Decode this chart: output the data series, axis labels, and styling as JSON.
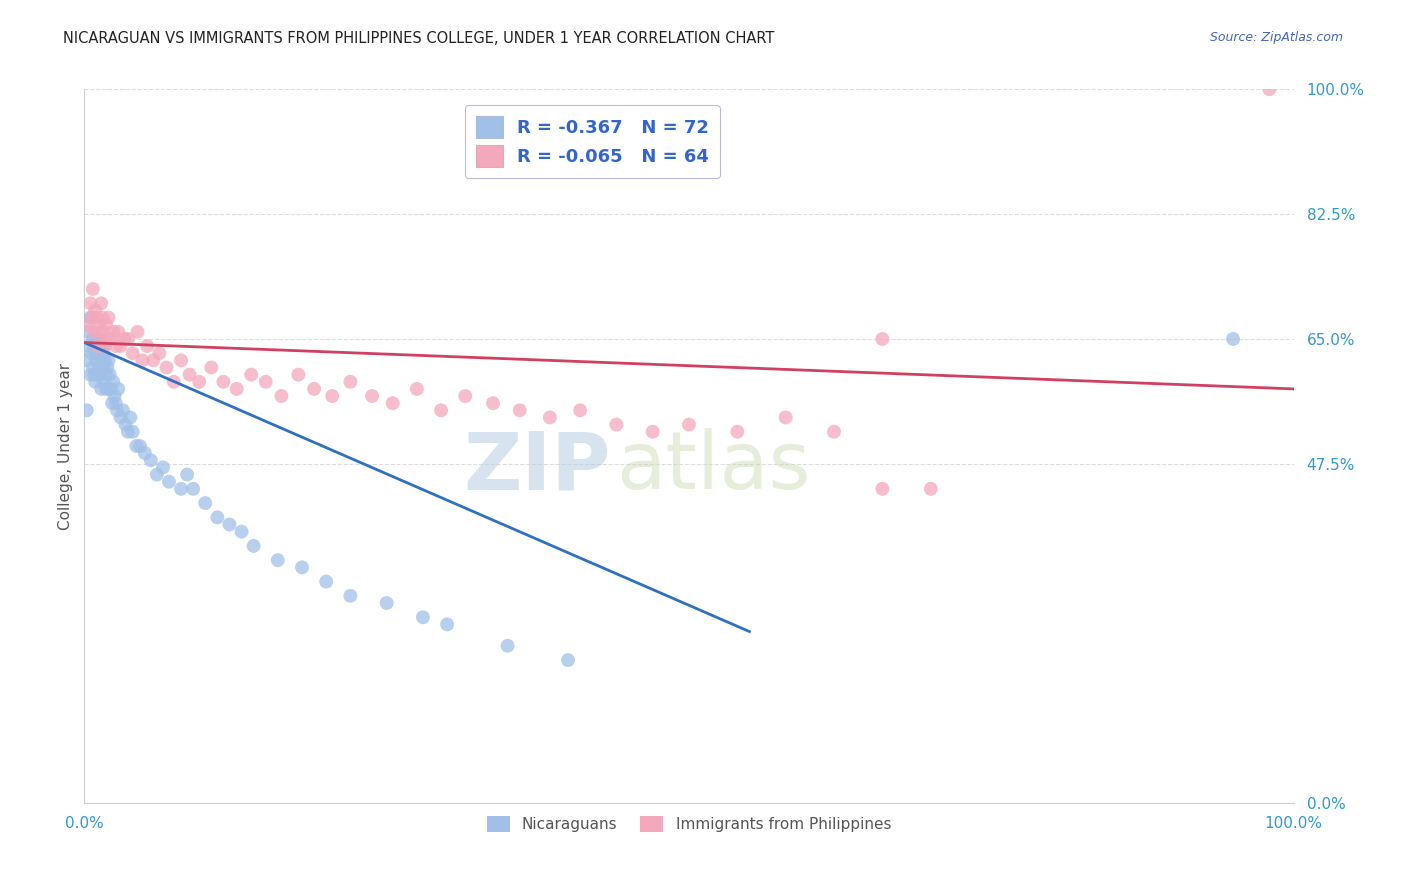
{
  "title": "NICARAGUAN VS IMMIGRANTS FROM PHILIPPINES COLLEGE, UNDER 1 YEAR CORRELATION CHART",
  "source": "Source: ZipAtlas.com",
  "ylabel": "College, Under 1 year",
  "xlim": [
    0.0,
    1.0
  ],
  "ylim": [
    0.0,
    1.0
  ],
  "xtick_positions": [
    0.0,
    1.0
  ],
  "xtick_labels": [
    "0.0%",
    "100.0%"
  ],
  "ytick_positions": [
    0.0,
    0.475,
    0.65,
    0.825,
    1.0
  ],
  "ytick_labels": [
    "0.0%",
    "47.5%",
    "65.0%",
    "82.5%",
    "100.0%"
  ],
  "legend_label_nicaraguans": "Nicaraguans",
  "legend_label_philippines": "Immigrants from Philippines",
  "watermark_zip": "ZIP",
  "watermark_atlas": "atlas",
  "blue_R": -0.367,
  "blue_N": 72,
  "pink_R": -0.065,
  "pink_N": 64,
  "blue_scatter_color": "#a0c0e8",
  "pink_scatter_color": "#f4a8bc",
  "blue_line_color": "#3070c0",
  "pink_line_color": "#d04060",
  "title_color": "#222222",
  "source_color": "#4466bb",
  "ylabel_color": "#555555",
  "tick_color": "#3399cc",
  "grid_color": "#dddddd",
  "legend_text_color": "#3366cc",
  "legend_border_color": "#bbbbdd",
  "background_color": "#ffffff",
  "blue_line_x0": 0.0,
  "blue_line_x1": 0.55,
  "blue_line_y0": 0.645,
  "blue_line_y1": 0.24,
  "pink_line_x0": 0.0,
  "pink_line_x1": 1.0,
  "pink_line_y0": 0.645,
  "pink_line_y1": 0.58,
  "blue_x": [
    0.002,
    0.003,
    0.004,
    0.005,
    0.005,
    0.006,
    0.007,
    0.007,
    0.008,
    0.008,
    0.009,
    0.009,
    0.01,
    0.01,
    0.011,
    0.011,
    0.012,
    0.012,
    0.013,
    0.013,
    0.014,
    0.014,
    0.015,
    0.015,
    0.016,
    0.016,
    0.017,
    0.018,
    0.018,
    0.019,
    0.02,
    0.02,
    0.021,
    0.022,
    0.023,
    0.024,
    0.025,
    0.026,
    0.027,
    0.028,
    0.03,
    0.032,
    0.034,
    0.036,
    0.038,
    0.04,
    0.043,
    0.046,
    0.05,
    0.055,
    0.06,
    0.065,
    0.07,
    0.08,
    0.085,
    0.09,
    0.1,
    0.11,
    0.12,
    0.13,
    0.14,
    0.16,
    0.18,
    0.2,
    0.22,
    0.25,
    0.28,
    0.3,
    0.35,
    0.4,
    0.002,
    0.95
  ],
  "blue_y": [
    0.62,
    0.66,
    0.64,
    0.68,
    0.6,
    0.63,
    0.61,
    0.65,
    0.64,
    0.6,
    0.63,
    0.59,
    0.65,
    0.62,
    0.63,
    0.6,
    0.65,
    0.61,
    0.64,
    0.6,
    0.62,
    0.58,
    0.64,
    0.61,
    0.63,
    0.59,
    0.62,
    0.6,
    0.58,
    0.61,
    0.62,
    0.58,
    0.6,
    0.58,
    0.56,
    0.59,
    0.57,
    0.56,
    0.55,
    0.58,
    0.54,
    0.55,
    0.53,
    0.52,
    0.54,
    0.52,
    0.5,
    0.5,
    0.49,
    0.48,
    0.46,
    0.47,
    0.45,
    0.44,
    0.46,
    0.44,
    0.42,
    0.4,
    0.39,
    0.38,
    0.36,
    0.34,
    0.33,
    0.31,
    0.29,
    0.28,
    0.26,
    0.25,
    0.22,
    0.2,
    0.55,
    0.65
  ],
  "pink_x": [
    0.003,
    0.005,
    0.006,
    0.007,
    0.008,
    0.009,
    0.01,
    0.011,
    0.012,
    0.013,
    0.014,
    0.015,
    0.016,
    0.017,
    0.018,
    0.019,
    0.02,
    0.022,
    0.024,
    0.026,
    0.028,
    0.03,
    0.033,
    0.036,
    0.04,
    0.044,
    0.048,
    0.052,
    0.057,
    0.062,
    0.068,
    0.074,
    0.08,
    0.087,
    0.095,
    0.105,
    0.115,
    0.126,
    0.138,
    0.15,
    0.163,
    0.177,
    0.19,
    0.205,
    0.22,
    0.238,
    0.255,
    0.275,
    0.295,
    0.315,
    0.338,
    0.36,
    0.385,
    0.41,
    0.44,
    0.47,
    0.5,
    0.54,
    0.58,
    0.62,
    0.66,
    0.7,
    0.66,
    0.98
  ],
  "pink_y": [
    0.67,
    0.7,
    0.68,
    0.72,
    0.66,
    0.69,
    0.68,
    0.64,
    0.67,
    0.66,
    0.7,
    0.68,
    0.66,
    0.64,
    0.67,
    0.65,
    0.68,
    0.65,
    0.66,
    0.64,
    0.66,
    0.64,
    0.65,
    0.65,
    0.63,
    0.66,
    0.62,
    0.64,
    0.62,
    0.63,
    0.61,
    0.59,
    0.62,
    0.6,
    0.59,
    0.61,
    0.59,
    0.58,
    0.6,
    0.59,
    0.57,
    0.6,
    0.58,
    0.57,
    0.59,
    0.57,
    0.56,
    0.58,
    0.55,
    0.57,
    0.56,
    0.55,
    0.54,
    0.55,
    0.53,
    0.52,
    0.53,
    0.52,
    0.54,
    0.52,
    0.65,
    0.44,
    0.44,
    1.0
  ]
}
